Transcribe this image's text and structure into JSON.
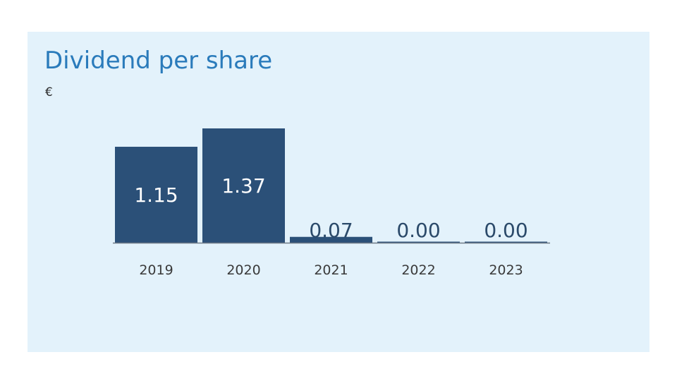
{
  "chart_data": {
    "type": "bar",
    "title": "Dividend per share",
    "unit": "€",
    "categories": [
      "2019",
      "2020",
      "2021",
      "2022",
      "2023"
    ],
    "values": [
      1.15,
      1.37,
      0.07,
      0.0,
      0.0
    ],
    "value_labels": [
      "1.15",
      "1.37",
      "0.07",
      "0.00",
      "0.00"
    ],
    "xlabel": "",
    "ylabel": "",
    "ylim": [
      0,
      1.37
    ],
    "grid": false,
    "legend": "none",
    "colors": {
      "bar": "#2b5078",
      "label_inside": "#ffffff",
      "label_outside": "#2b4a6a",
      "axis": "#6f7b86",
      "title": "#2a7bbb",
      "panel": "#e3f2fb"
    }
  }
}
